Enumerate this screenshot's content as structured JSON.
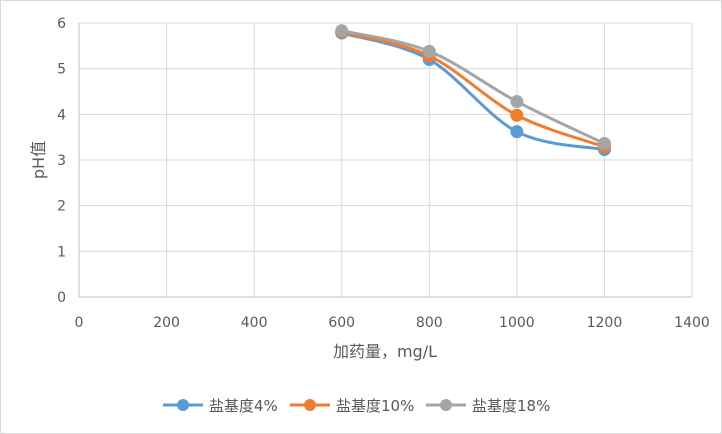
{
  "chart_data": {
    "type": "scatter",
    "title": "",
    "xlabel": "加药量，mg/L",
    "ylabel": "pH值",
    "xlim": [
      0,
      1400
    ],
    "ylim": [
      0,
      6
    ],
    "x_ticks": [
      0,
      200,
      400,
      600,
      800,
      1000,
      1200,
      1400
    ],
    "y_ticks": [
      0,
      1,
      2,
      3,
      4,
      5,
      6
    ],
    "x_tick_labels": [
      "0",
      "200",
      "400",
      "600",
      "800",
      "1000",
      "1200",
      "1400"
    ],
    "y_tick_labels": [
      "0",
      "1",
      "2",
      "3",
      "4",
      "5",
      "6"
    ],
    "grid": true,
    "smooth_lines": true,
    "legend_position": "bottom",
    "x": [
      600,
      800,
      1000,
      1200
    ],
    "series": [
      {
        "name": "盐基度4%",
        "color": "#5b9bd5",
        "values": [
          5.78,
          5.2,
          3.62,
          3.23
        ]
      },
      {
        "name": "盐基度10%",
        "color": "#ed7d31",
        "values": [
          5.8,
          5.28,
          3.98,
          3.29
        ]
      },
      {
        "name": "盐基度18%",
        "color": "#a5a5a5",
        "values": [
          5.83,
          5.38,
          4.28,
          3.36
        ]
      }
    ]
  }
}
